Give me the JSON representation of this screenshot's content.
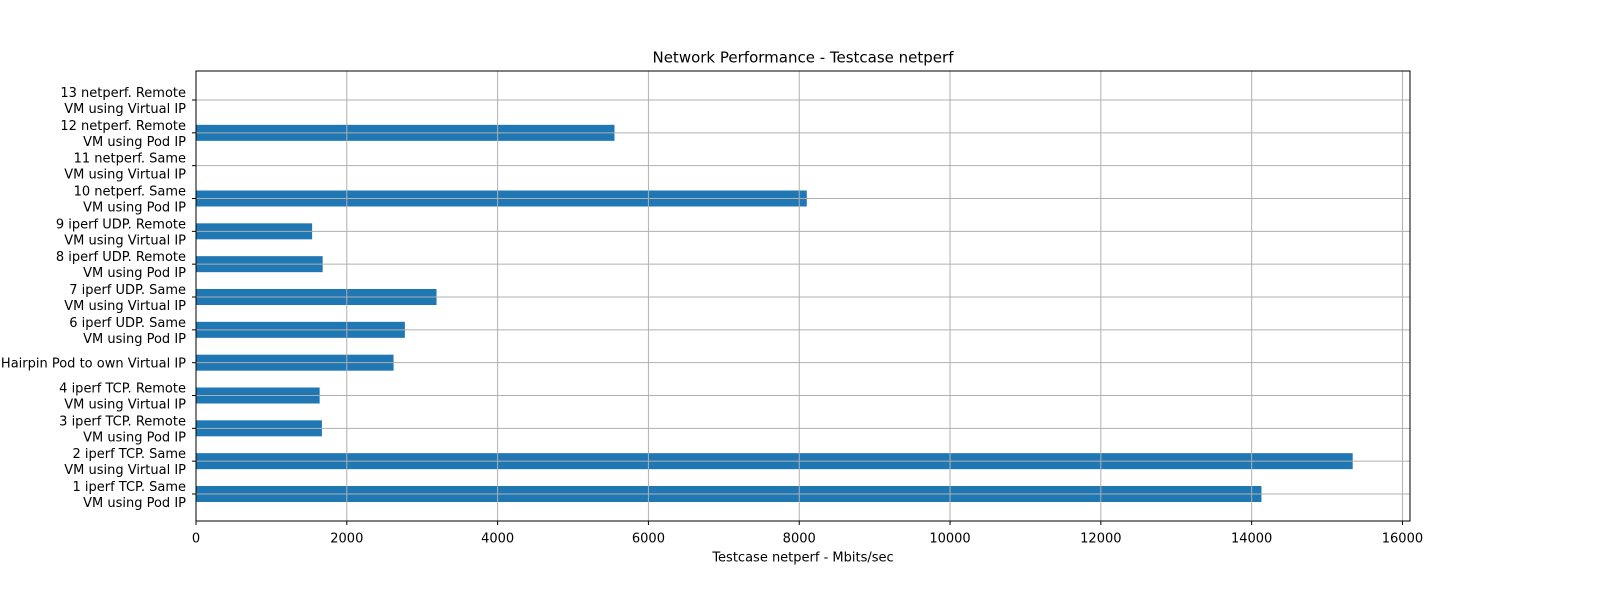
{
  "chart_data": {
    "type": "barh",
    "title": "Network Performance - Testcase netperf",
    "x_label": "Testcase netperf - Mbits/sec",
    "categories": [
      "1 iperf TCP. Same\nVM using Pod IP",
      "2 iperf TCP. Same\nVM using Virtual IP",
      "3 iperf TCP. Remote\nVM using Pod IP",
      "4 iperf TCP. Remote\nVM using Virtual IP",
      "Hairpin Pod to own Virtual IP",
      "6 iperf UDP. Same\nVM using Pod IP",
      "7 iperf UDP. Same\nVM using Virtual IP",
      "8 iperf UDP. Remote\nVM using Pod IP",
      "9 iperf UDP. Remote\nVM using Virtual IP",
      "10 netperf. Same\nVM using Pod IP",
      "11 netperf. Same\nVM using Virtual IP",
      "12 netperf. Remote\nVM using Pod IP",
      "13 netperf. Remote\nVM using Virtual IP"
    ],
    "values": [
      14130,
      15340,
      1670,
      1640,
      2620,
      2770,
      3190,
      1680,
      1540,
      8100,
      null,
      5550,
      null
    ],
    "color": "#1f77b4",
    "xlim": [
      0,
      16100
    ],
    "xticks": [
      0,
      2000,
      4000,
      6000,
      8000,
      10000,
      12000,
      14000,
      16000
    ],
    "grid": true
  }
}
